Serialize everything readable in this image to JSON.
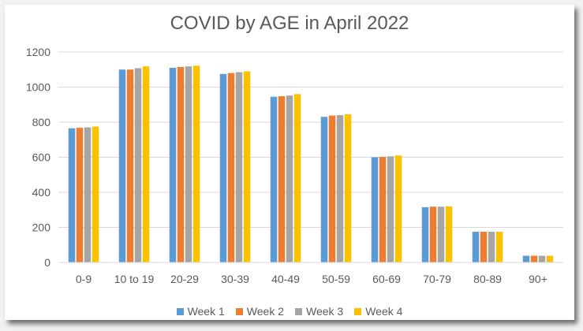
{
  "chart_data": {
    "type": "bar",
    "title": "COVID by AGE in April 2022",
    "categories": [
      "0-9",
      "10 to 19",
      "20-29",
      "30-39",
      "40-49",
      "50-59",
      "60-69",
      "70-79",
      "80-89",
      "90+"
    ],
    "ylim": [
      0,
      1200
    ],
    "yticks": [
      0,
      200,
      400,
      600,
      800,
      1000,
      1200
    ],
    "grid": true,
    "legend_position": "bottom",
    "series": [
      {
        "name": "Week 1",
        "color": "#5b9bd5",
        "values": [
          765,
          1100,
          1110,
          1075,
          945,
          830,
          600,
          315,
          175,
          38
        ]
      },
      {
        "name": "Week 2",
        "color": "#ed7d31",
        "values": [
          768,
          1100,
          1115,
          1080,
          948,
          838,
          602,
          318,
          175,
          38
        ]
      },
      {
        "name": "Week 3",
        "color": "#a5a5a5",
        "values": [
          770,
          1108,
          1118,
          1085,
          952,
          840,
          605,
          318,
          175,
          38
        ]
      },
      {
        "name": "Week 4",
        "color": "#ffc000",
        "values": [
          775,
          1118,
          1122,
          1090,
          960,
          845,
          610,
          320,
          175,
          38
        ]
      }
    ]
  }
}
